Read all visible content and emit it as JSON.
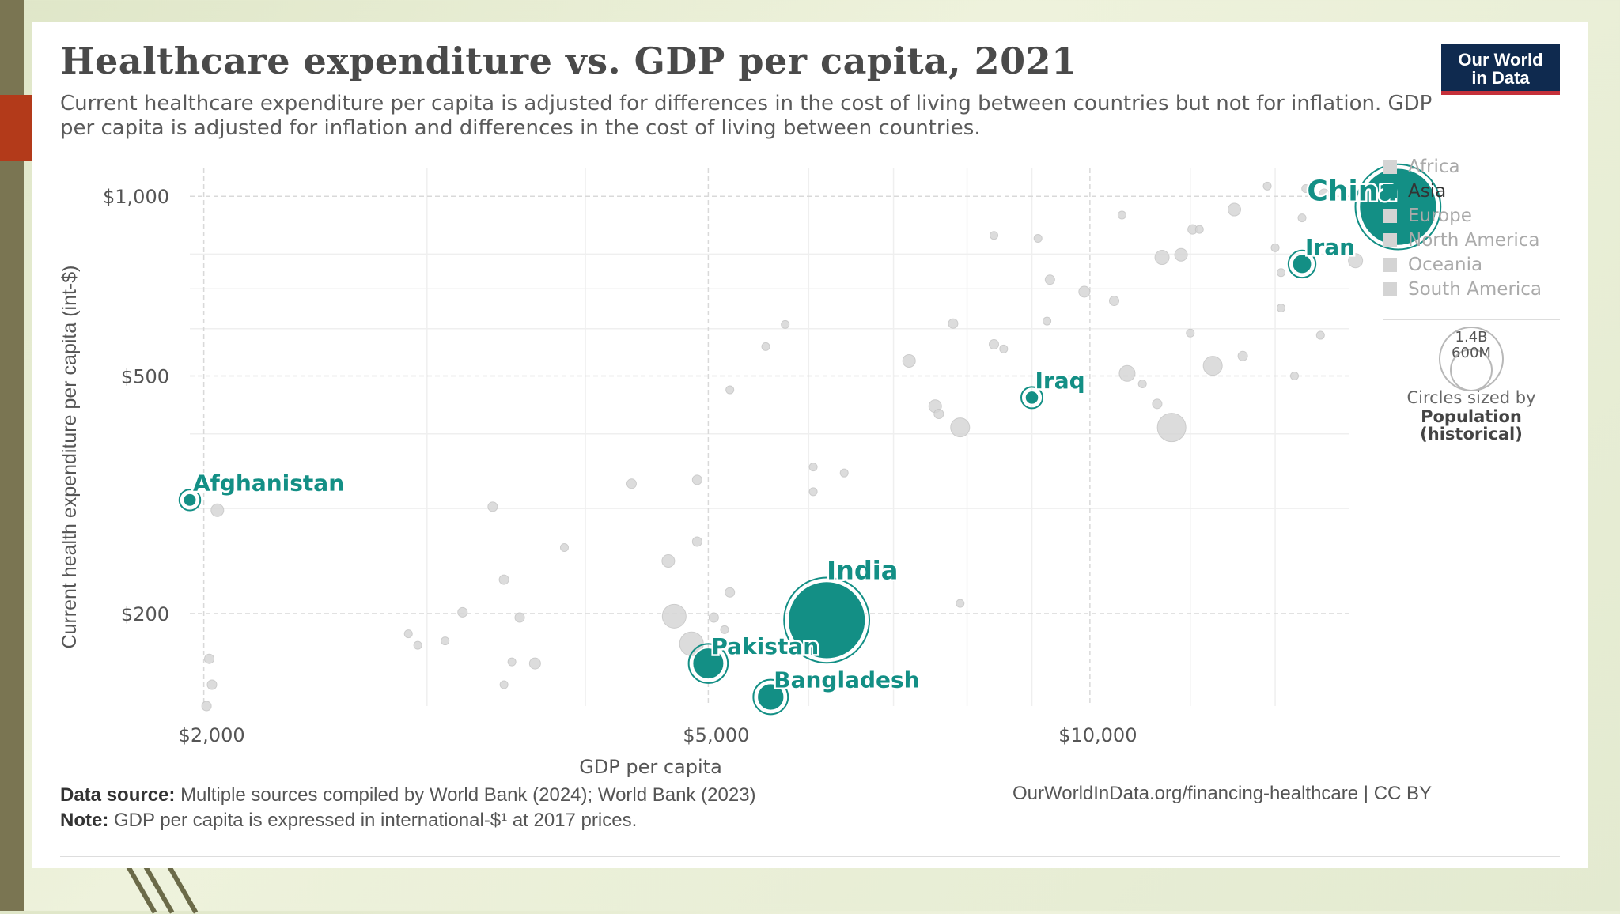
{
  "title": "Healthcare expenditure vs. GDP per capita, 2021",
  "subtitle": "Current healthcare expenditure per capita is adjusted for differences in the cost of living between countries but not for inflation. GDP per capita is adjusted for inflation and differences in the cost of living between countries.",
  "logo": {
    "line1": "Our World",
    "line2": "in Data",
    "bg_color": "#0f2a4f",
    "accent_color": "#c5303a"
  },
  "colors": {
    "asia": "#138f85",
    "other": "#d6d6d6",
    "text": "#555555"
  },
  "footer": {
    "source_label": "Data source:",
    "source_text": "Multiple sources compiled by World Bank (2024); World Bank (2023)",
    "note_label": "Note:",
    "note_text": "GDP per capita is expressed in international-$¹ at 2017 prices.",
    "url": "OurWorldInData.org/financing-healthcare | CC BY"
  },
  "chart_data": {
    "type": "scatter",
    "title": "Healthcare expenditure vs. GDP per capita, 2021",
    "xlabel": "GDP per capita",
    "ylabel": "Current health expenditure per capita (int-$)",
    "xscale": "log",
    "yscale": "log",
    "xlim": [
      1950,
      16000
    ],
    "ylim": [
      140,
      1080
    ],
    "xticks": [
      {
        "value": 2000,
        "label": "$2,000"
      },
      {
        "value": 5000,
        "label": "$5,000"
      },
      {
        "value": 10000,
        "label": "$10,000"
      }
    ],
    "yticks": [
      {
        "value": 200,
        "label": "$200"
      },
      {
        "value": 500,
        "label": "$500"
      },
      {
        "value": 1000,
        "label": "$1,000"
      }
    ],
    "legend": {
      "position": "right",
      "items": [
        {
          "label": "Africa",
          "active": false
        },
        {
          "label": "Asia",
          "active": true
        },
        {
          "label": "Europe",
          "active": false
        },
        {
          "label": "North America",
          "active": false
        },
        {
          "label": "Oceania",
          "active": false
        },
        {
          "label": "South America",
          "active": false
        }
      ],
      "size_values": [
        "1.4B",
        "600M"
      ],
      "size_caption": "Circles sized by",
      "size_title": "Population",
      "size_subtitle": "(historical)"
    },
    "highlighted": [
      {
        "name": "China",
        "x": 17500,
        "y": 960,
        "pop": 1412
      },
      {
        "name": "Iran",
        "x": 14700,
        "y": 770,
        "pop": 88
      },
      {
        "name": "Iraq",
        "x": 9000,
        "y": 460,
        "pop": 43
      },
      {
        "name": "Afghanistan",
        "x": 1950,
        "y": 310,
        "pop": 40
      },
      {
        "name": "India",
        "x": 6200,
        "y": 195,
        "pop": 1414
      },
      {
        "name": "Pakistan",
        "x": 5000,
        "y": 165,
        "pop": 231
      },
      {
        "name": "Bangladesh",
        "x": 5600,
        "y": 145,
        "pop": 169
      }
    ],
    "other_points": [
      [
        2050,
        298,
        8
      ],
      [
        2020,
        168,
        6
      ],
      [
        2030,
        152,
        6
      ],
      [
        2010,
        140,
        6
      ],
      [
        3450,
        228,
        6
      ],
      [
        3850,
        258,
        5
      ],
      [
        3380,
        302,
        6
      ],
      [
        3200,
        201,
        6
      ],
      [
        3550,
        197,
        6
      ],
      [
        2900,
        185,
        5
      ],
      [
        3100,
        180,
        5
      ],
      [
        2950,
        177,
        5
      ],
      [
        3500,
        166,
        5
      ],
      [
        3650,
        165,
        7
      ],
      [
        3450,
        152,
        5
      ],
      [
        4350,
        330,
        6
      ],
      [
        4700,
        198,
        15
      ],
      [
        4650,
        245,
        8
      ],
      [
        4900,
        264,
        6
      ],
      [
        4900,
        335,
        6
      ],
      [
        5050,
        197,
        6
      ],
      [
        5150,
        188,
        5
      ],
      [
        5200,
        217,
        6
      ],
      [
        4850,
        178,
        15
      ],
      [
        5200,
        474,
        5
      ],
      [
        5550,
        560,
        5
      ],
      [
        5750,
        610,
        5
      ],
      [
        6050,
        352,
        5
      ],
      [
        6050,
        320,
        5
      ],
      [
        6400,
        344,
        5
      ],
      [
        7200,
        530,
        8
      ],
      [
        7550,
        445,
        8
      ],
      [
        7600,
        432,
        6
      ],
      [
        7900,
        410,
        12
      ],
      [
        7800,
        612,
        6
      ],
      [
        7900,
        208,
        5
      ],
      [
        8400,
        565,
        6
      ],
      [
        8550,
        555,
        5
      ],
      [
        8400,
        860,
        5
      ],
      [
        9100,
        850,
        5
      ],
      [
        9250,
        618,
        5
      ],
      [
        9300,
        725,
        6
      ],
      [
        9900,
        692,
        7
      ],
      [
        10450,
        668,
        6
      ],
      [
        10600,
        930,
        5
      ],
      [
        10700,
        505,
        10
      ],
      [
        11000,
        485,
        5
      ],
      [
        11400,
        790,
        9
      ],
      [
        11800,
        798,
        8
      ],
      [
        11300,
        449,
        6
      ],
      [
        11600,
        410,
        18
      ],
      [
        12000,
        590,
        5
      ],
      [
        12050,
        880,
        6
      ],
      [
        12200,
        880,
        5
      ],
      [
        12500,
        520,
        12
      ],
      [
        13000,
        950,
        8
      ],
      [
        13200,
        540,
        6
      ],
      [
        14000,
        820,
        5
      ],
      [
        14150,
        650,
        5
      ],
      [
        14150,
        745,
        5
      ],
      [
        14500,
        500,
        5
      ],
      [
        15200,
        585,
        5
      ],
      [
        16200,
        780,
        9
      ],
      [
        13800,
        1040,
        5
      ],
      [
        14800,
        1030,
        5
      ],
      [
        14700,
        920,
        5
      ],
      [
        15300,
        1010,
        6
      ]
    ]
  }
}
